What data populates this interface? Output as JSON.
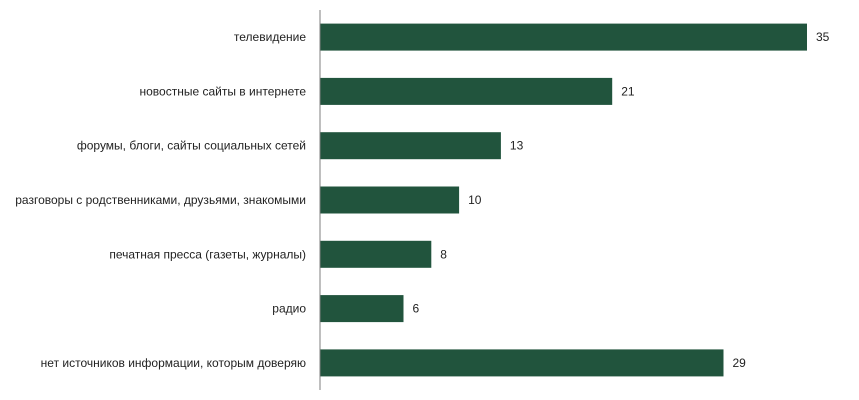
{
  "chart_data": {
    "type": "bar",
    "orientation": "horizontal",
    "categories": [
      "телевидение",
      "новостные сайты в интернете",
      "форумы, блоги, сайты социальных сетей",
      "разговоры с родственниками, друзьями, знакомыми",
      "печатная пресса (газеты, журналы)",
      "радио",
      "нет источников информации, которым доверяю"
    ],
    "values": [
      35,
      21,
      13,
      10,
      8,
      6,
      29
    ],
    "data_labels": [
      "35",
      "21",
      "13",
      "10",
      "8",
      "6",
      "29"
    ],
    "xlim": [
      0,
      35
    ],
    "grid": false,
    "legend": "none",
    "colors": {
      "bar": "#21543d",
      "axis": "#7f7f7f",
      "text": "#222222"
    }
  }
}
